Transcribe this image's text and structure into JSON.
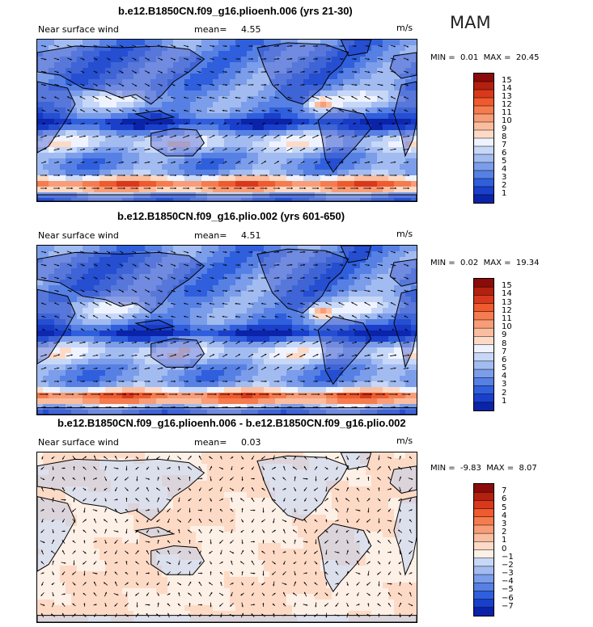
{
  "season": "MAM",
  "colors": {
    "ocean_blue": "#2f55e0",
    "deep_blue": "#0a2fb8",
    "light_blue": "#bcd0f5",
    "white_band": "#f2f6ff",
    "peach": "#fbd7c3",
    "orange": "#f0805a",
    "red": "#c02a1a",
    "dark_red": "#8a0a0a"
  },
  "panels": [
    {
      "title": "b.e12.B1850CN.f09_g16.plioenh.006 (yrs 21-30)",
      "variable": "Near surface wind",
      "mean_label": "mean=",
      "mean_value": "4.55",
      "units": "m/s",
      "min_label": "MIN =",
      "min_value": "0.01",
      "max_label": "MAX =",
      "max_value": "20.45",
      "colorbar_levels": [
        "15",
        "14",
        "13",
        "12",
        "11",
        "10",
        "9",
        "8",
        "7",
        "6",
        "5",
        "4",
        "3",
        "2",
        "1"
      ],
      "colorbar_colors": [
        "#8b0a0a",
        "#b3200f",
        "#d9381c",
        "#ef5a2e",
        "#f57c4e",
        "#f89d77",
        "#fbbd9f",
        "#fddac6",
        "#eef3ff",
        "#c7d7f7",
        "#a2bcf1",
        "#7b9dea",
        "#5680e4",
        "#2f5fdc",
        "#1a3fcb",
        "#0a23a8"
      ],
      "wind_field": "full"
    },
    {
      "title": "b.e12.B1850CN.f09_g16.plio.002 (yrs 601-650)",
      "variable": "Near surface wind",
      "mean_label": "mean=",
      "mean_value": "4.51",
      "units": "m/s",
      "min_label": "MIN =",
      "min_value": "0.02",
      "max_label": "MAX =",
      "max_value": "19.34",
      "colorbar_levels": [
        "15",
        "14",
        "13",
        "12",
        "11",
        "10",
        "9",
        "8",
        "7",
        "6",
        "5",
        "4",
        "3",
        "2",
        "1"
      ],
      "colorbar_colors": [
        "#8b0a0a",
        "#b3200f",
        "#d9381c",
        "#ef5a2e",
        "#f57c4e",
        "#f89d77",
        "#fbbd9f",
        "#fddac6",
        "#eef3ff",
        "#c7d7f7",
        "#a2bcf1",
        "#7b9dea",
        "#5680e4",
        "#2f5fdc",
        "#1a3fcb",
        "#0a23a8"
      ],
      "wind_field": "full"
    },
    {
      "title": "b.e12.B1850CN.f09_g16.plioenh.006 - b.e12.B1850CN.f09_g16.plio.002",
      "variable": "Near surface wind",
      "mean_label": "mean=",
      "mean_value": "0.03",
      "units": "m/s",
      "min_label": "MIN =",
      "min_value": "-9.83",
      "max_label": "MAX =",
      "max_value": "8.07",
      "colorbar_levels": [
        "7",
        "6",
        "5",
        "4",
        "3",
        "2",
        "1",
        "0",
        "−1",
        "−2",
        "−3",
        "−4",
        "−5",
        "−6",
        "−7"
      ],
      "colorbar_colors": [
        "#8b0a0a",
        "#b3200f",
        "#d9381c",
        "#ef5a2e",
        "#f57c4e",
        "#f89d77",
        "#fbbd9f",
        "#fddac6",
        "#fdf0e6",
        "#c7d7f7",
        "#a2bcf1",
        "#7b9dea",
        "#5680e4",
        "#2f5fdc",
        "#1a3fcb",
        "#0a23a8"
      ],
      "wind_field": "difference"
    }
  ]
}
